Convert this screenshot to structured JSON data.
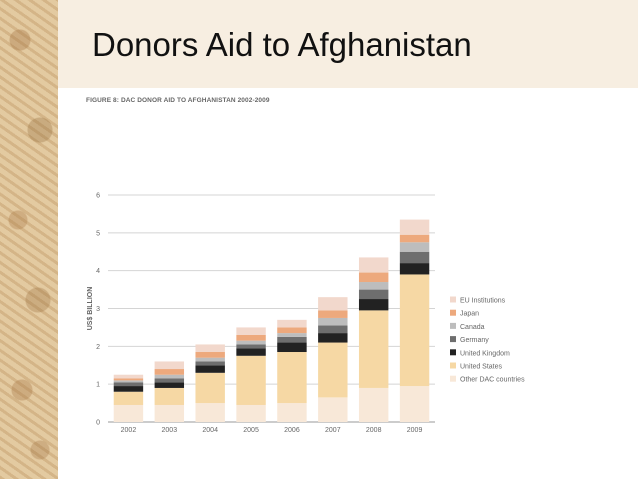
{
  "slide": {
    "title": "Donors Aid to Afghanistan",
    "caption": "FIGURE 8: DAC DONOR AID TO AFGHANISTAN 2002-2009"
  },
  "chart_data": {
    "type": "bar",
    "stacked": true,
    "title": "FIGURE 8: DAC DONOR AID TO AFGHANISTAN 2002-2009",
    "xlabel": "",
    "ylabel": "US$ BILLION",
    "ylim": [
      0,
      6
    ],
    "yticks": [
      0,
      1,
      2,
      3,
      4,
      5,
      6
    ],
    "grid": true,
    "legend_position": "right",
    "categories": [
      "2002",
      "2003",
      "2004",
      "2005",
      "2006",
      "2007",
      "2008",
      "2009"
    ],
    "series": [
      {
        "name": "Other DAC countries",
        "color": "#f8e8d8",
        "values": [
          0.45,
          0.45,
          0.5,
          0.45,
          0.5,
          0.65,
          0.9,
          0.95
        ]
      },
      {
        "name": "United States",
        "color": "#f6d8a4",
        "values": [
          0.35,
          0.45,
          0.8,
          1.3,
          1.35,
          1.45,
          2.05,
          2.95
        ]
      },
      {
        "name": "United Kingdom",
        "color": "#222222",
        "values": [
          0.15,
          0.15,
          0.2,
          0.2,
          0.25,
          0.25,
          0.3,
          0.3
        ]
      },
      {
        "name": "Germany",
        "color": "#6e6e6e",
        "values": [
          0.1,
          0.1,
          0.1,
          0.1,
          0.15,
          0.2,
          0.25,
          0.3
        ]
      },
      {
        "name": "Canada",
        "color": "#bdbdbd",
        "values": [
          0.05,
          0.1,
          0.1,
          0.1,
          0.1,
          0.2,
          0.2,
          0.25
        ]
      },
      {
        "name": "Japan",
        "color": "#eda97d",
        "values": [
          0.05,
          0.15,
          0.15,
          0.15,
          0.15,
          0.2,
          0.25,
          0.2
        ]
      },
      {
        "name": "EU Institutions",
        "color": "#f2d8cc",
        "values": [
          0.1,
          0.2,
          0.2,
          0.2,
          0.2,
          0.35,
          0.4,
          0.4
        ]
      }
    ]
  }
}
